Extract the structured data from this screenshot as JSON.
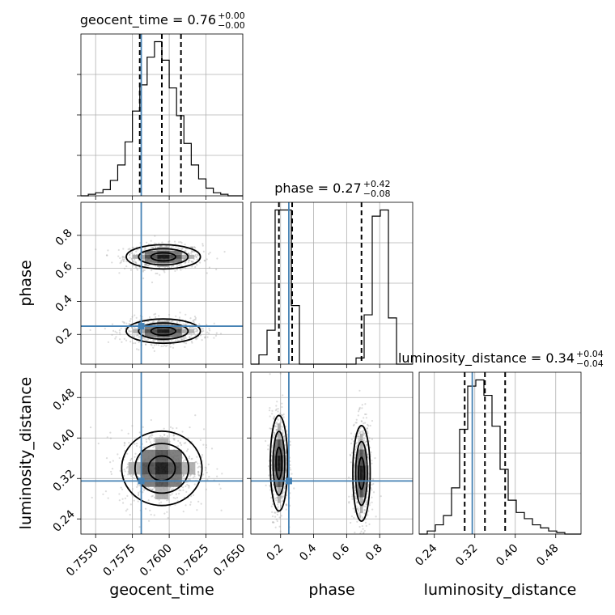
{
  "chart_data": {
    "type": "corner",
    "parameters": [
      {
        "name": "geocent_time",
        "label": "geocent_time",
        "range": [
          0.754,
          0.765
        ],
        "ticks": [
          "0.7550",
          "0.7575",
          "0.7600",
          "0.7625",
          "0.7650"
        ],
        "tick_values": [
          0.755,
          0.7575,
          0.76,
          0.7625,
          0.765
        ]
      },
      {
        "name": "phase",
        "label": "phase",
        "range": [
          0.02,
          1.0
        ],
        "ticks": [
          "0.2",
          "0.4",
          "0.6",
          "0.8"
        ],
        "tick_values": [
          0.2,
          0.4,
          0.6,
          0.8
        ]
      },
      {
        "name": "luminosity_distance",
        "label": "luminosity_distance",
        "range": [
          0.21,
          0.53
        ],
        "ticks": [
          "0.24",
          "0.32",
          "0.40",
          "0.48"
        ],
        "tick_values": [
          0.24,
          0.32,
          0.4,
          0.48
        ]
      }
    ],
    "titles": {
      "geocent_time": {
        "prefix": "geocent_time = 0.76",
        "plus": "+0.00",
        "minus": "−0.00"
      },
      "phase": {
        "prefix": "phase = 0.27",
        "plus": "+0.42",
        "minus": "−0.08"
      },
      "luminosity_distance": {
        "prefix": "luminosity_distance = 0.34",
        "plus": "+0.04",
        "minus": "−0.04"
      }
    },
    "truths": {
      "geocent_time": 0.7581,
      "phase": 0.25,
      "luminosity_distance": 0.315
    },
    "quantiles": {
      "geocent_time": [
        0.758,
        0.7595,
        0.7608
      ],
      "phase": [
        0.19,
        0.27,
        0.69
      ],
      "luminosity_distance": [
        0.3,
        0.34,
        0.38
      ]
    },
    "histograms": {
      "geocent_time": {
        "edges_start": 0.754,
        "bin_width": 0.0005,
        "counts": [
          0,
          1,
          2,
          4,
          10,
          20,
          35,
          55,
          72,
          90,
          100,
          88,
          70,
          52,
          34,
          20,
          11,
          5,
          2,
          1,
          0,
          0
        ]
      },
      "phase": {
        "edges_start": 0.02,
        "bin_width": 0.049,
        "counts": [
          0,
          6,
          22,
          100,
          100,
          38,
          0,
          0,
          0,
          0,
          0,
          0,
          0,
          4,
          32,
          96,
          100,
          30,
          0,
          0
        ]
      },
      "luminosity_distance": {
        "edges_start": 0.21,
        "bin_width": 0.016,
        "counts": [
          0,
          2,
          6,
          12,
          30,
          68,
          96,
          100,
          90,
          70,
          42,
          22,
          14,
          10,
          6,
          4,
          2,
          1,
          0,
          0
        ]
      }
    },
    "modes_2d": {
      "geocent_time_vs_phase": [
        {
          "x": 0.7596,
          "y": 0.67,
          "sx": 0.0012,
          "sy": 0.035
        },
        {
          "x": 0.7596,
          "y": 0.22,
          "sx": 0.0012,
          "sy": 0.035
        }
      ],
      "geocent_time_vs_luminosity_distance": [
        {
          "x": 0.7595,
          "y": 0.34,
          "sx": 0.0013,
          "sy": 0.035
        }
      ],
      "phase_vs_luminosity_distance": [
        {
          "x": 0.19,
          "y": 0.35,
          "sx": 0.025,
          "sy": 0.045
        },
        {
          "x": 0.69,
          "y": 0.33,
          "sx": 0.025,
          "sy": 0.045
        }
      ]
    }
  }
}
